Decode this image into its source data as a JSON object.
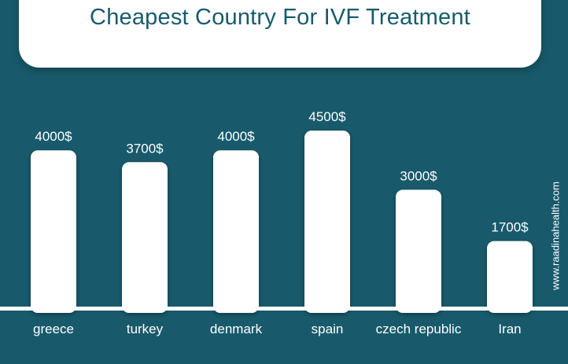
{
  "title": "Cheapest Country For IVF Treatment",
  "watermark": "www.raadinahealth.com",
  "colors": {
    "background": "#185a6b",
    "bar": "#ffffff",
    "title": "#175b6c",
    "text": "#ffffff"
  },
  "chart_data": {
    "type": "bar",
    "title": "Cheapest Country For IVF Treatment",
    "categories": [
      "greece",
      "turkey",
      "denmark",
      "spain",
      "czech republic",
      "Iran"
    ],
    "values": [
      4000,
      3700,
      4000,
      4500,
      3000,
      1700
    ],
    "data_labels": [
      "4000$",
      "3700$",
      "4000$",
      "4500$",
      "3000$",
      "1700$"
    ],
    "xlabel": "",
    "ylabel": "",
    "grid": false,
    "legend": "none"
  }
}
